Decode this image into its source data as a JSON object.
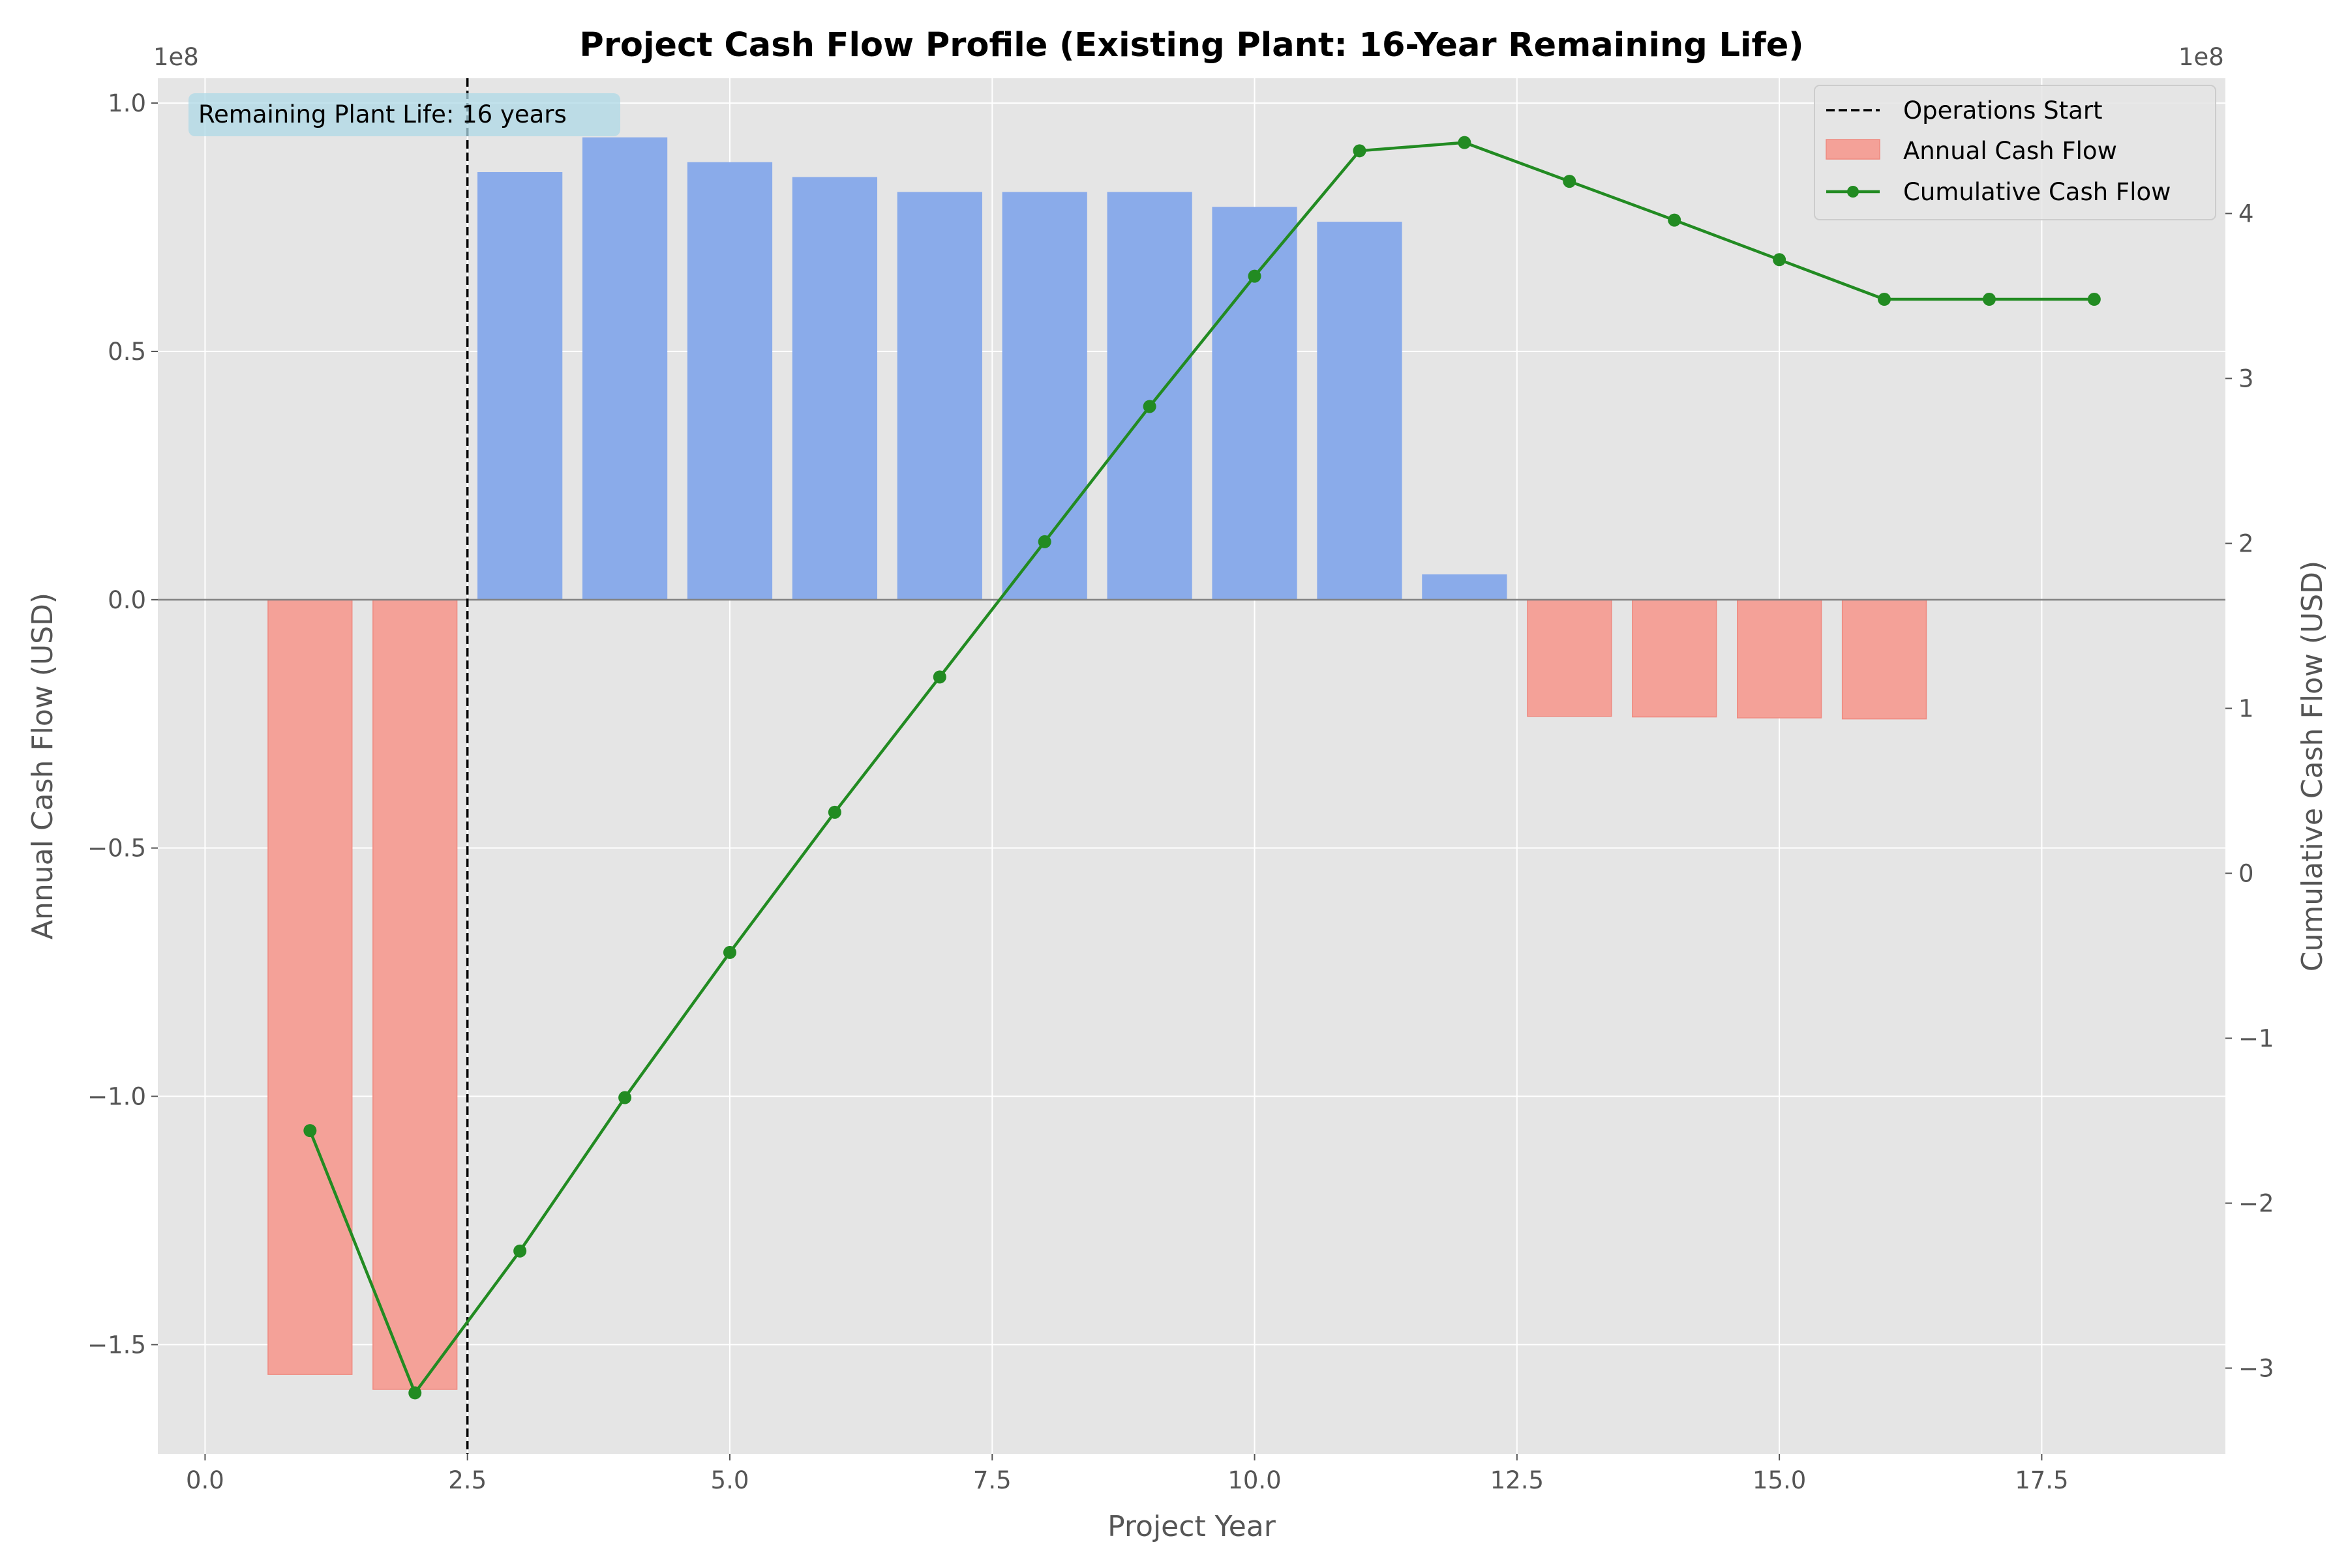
{
  "chart_data": {
    "type": "bar",
    "title": "Project Cash Flow Profile (Existing Plant: 16-Year Remaining Life)",
    "xlabel": "Project Year",
    "ylabel": "Annual Cash Flow (USD)",
    "ylabel_right": "Cumulative Cash Flow (USD)",
    "offset_left": "1e8",
    "offset_right": "1e8",
    "xlim": [
      -0.45,
      19.25
    ],
    "ylim": [
      -172000000.0,
      105000000.0
    ],
    "ylim_right": [
      -352000000.0,
      482000000.0
    ],
    "x_ticks": [
      0.0,
      2.5,
      5.0,
      7.5,
      10.0,
      12.5,
      15.0,
      17.5
    ],
    "x_tick_labels": [
      "0.0",
      "2.5",
      "5.0",
      "7.5",
      "10.0",
      "12.5",
      "15.0",
      "17.5"
    ],
    "y_ticks": [
      -150000000.0,
      -100000000.0,
      -50000000.0,
      0,
      50000000.0,
      100000000.0
    ],
    "y_tick_labels": [
      "−1.5",
      "−1.0",
      "−0.5",
      "0.0",
      "0.5",
      "1.0"
    ],
    "y_ticks_right": [
      -300000000.0,
      -200000000.0,
      -100000000.0,
      0,
      100000000.0,
      200000000.0,
      300000000.0,
      400000000.0
    ],
    "y_tick_labels_right": [
      "−3",
      "−2",
      "−1",
      "0",
      "1",
      "2",
      "3",
      "4"
    ],
    "grid": true,
    "legend_position": "top-right",
    "colors": {
      "positive": "#8aabea",
      "negative": "#f4a198",
      "cumulative": "#228b22",
      "ops_line": "#000000",
      "plot_bg": "#e5e5e5",
      "zero_line": "#808080",
      "annotation_bg": "#add8e6"
    },
    "annual_cash_flow": {
      "name": "Annual Cash Flow",
      "x": [
        1,
        2,
        3,
        4,
        5,
        6,
        7,
        8,
        9,
        10,
        11,
        12,
        13,
        14,
        15,
        16
      ],
      "values": [
        -156000000.0,
        -159000000.0,
        86000000.0,
        93000000.0,
        88000000.0,
        85000000.0,
        82000000.0,
        82000000.0,
        82000000.0,
        79000000.0,
        76000000.0,
        5000000.0,
        -23500000.0,
        -23600000.0,
        -23800000.0,
        -24000000.0
      ]
    },
    "cumulative_cash_flow": {
      "name": "Cumulative Cash Flow",
      "x": [
        1,
        2,
        3,
        4,
        5,
        6,
        7,
        8,
        9,
        10,
        11,
        12,
        13,
        14,
        15,
        16,
        17,
        18
      ],
      "values": [
        -156000000.0,
        -315000000.0,
        -229000000.0,
        -136000000.0,
        -48000000.0,
        37000000.0,
        119000000.0,
        201000000.0,
        283000000.0,
        362000000.0,
        438000000.0,
        443000000.0,
        419500000.0,
        396000000.0,
        372000000.0,
        348000000.0,
        348000000.0,
        348000000.0
      ]
    },
    "operations_start": {
      "name": "Operations Start",
      "x": 2.5
    },
    "annotation": "Remaining Plant Life: 16 years"
  }
}
